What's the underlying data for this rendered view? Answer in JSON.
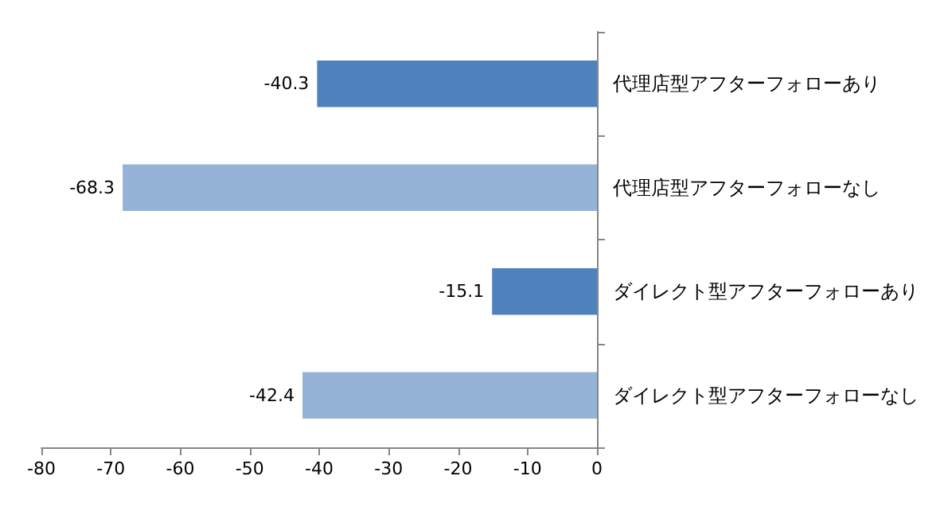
{
  "chart_data": {
    "type": "bar",
    "orientation": "horizontal",
    "categories": [
      "代理店型アフターフォローあり",
      "代理店型アフターフォローなし",
      "ダイレクト型アフターフォローあり",
      "ダイレクト型アフターフォローなし"
    ],
    "values": [
      -40.3,
      -68.3,
      -15.1,
      -42.4
    ],
    "colors": [
      "#4f81bd",
      "#95b3d7",
      "#4f81bd",
      "#95b3d7"
    ],
    "xlim": [
      -80,
      0
    ],
    "xticks": [
      -80,
      -70,
      -60,
      -50,
      -40,
      -30,
      -20,
      -10,
      0
    ],
    "data_labels": true,
    "grid": false
  }
}
